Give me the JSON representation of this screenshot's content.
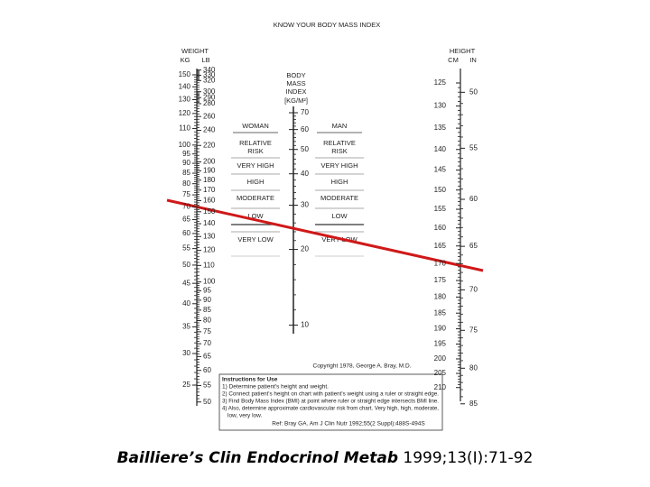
{
  "title": "KNOW YOUR BODY MASS INDEX",
  "weight": {
    "header": "WEIGHT",
    "kg_label": "KG",
    "lb_label": "LB",
    "kg": [
      150,
      140,
      130,
      120,
      110,
      100,
      95,
      90,
      85,
      80,
      75,
      70,
      65,
      60,
      55,
      50,
      45,
      40,
      35,
      30,
      25
    ],
    "lb": [
      340,
      330,
      320,
      300,
      290,
      280,
      260,
      240,
      220,
      200,
      190,
      180,
      170,
      160,
      150,
      140,
      130,
      120,
      110,
      100,
      95,
      90,
      85,
      80,
      75,
      70,
      65,
      60,
      55,
      50
    ]
  },
  "bmi": {
    "header": [
      "BODY",
      "MASS",
      "INDEX",
      "[KG/M²]"
    ],
    "ticks": [
      70,
      60,
      50,
      40,
      30,
      20,
      10
    ]
  },
  "height": {
    "header": "HEIGHT",
    "cm_label": "CM",
    "in_label": "IN",
    "cm": [
      125,
      130,
      135,
      140,
      145,
      150,
      155,
      160,
      165,
      170,
      175,
      180,
      185,
      190,
      195,
      200,
      205,
      210
    ],
    "in": [
      50,
      55,
      60,
      65,
      70,
      75,
      80,
      85
    ]
  },
  "woman": {
    "header": "WOMAN",
    "risk_header": [
      "RELATIVE",
      "RISK"
    ],
    "levels": [
      "VERY HIGH",
      "HIGH",
      "MODERATE",
      "LOW",
      "VERY LOW"
    ]
  },
  "man": {
    "header": "MAN",
    "risk_header": [
      "RELATIVE",
      "RISK"
    ],
    "levels": [
      "VERY HIGH",
      "HIGH",
      "MODERATE",
      "LOW",
      "VERY LOW"
    ]
  },
  "copyright": "Copyright 1978, George A. Bray, M.D.",
  "instructions": {
    "title": "Instructions for Use",
    "steps": [
      "1) Determine patient's height and weight.",
      "2) Connect patient's height on chart with patient's weight using a ruler or straight edge.",
      "3) Find Body Mass Index (BMI) at point where ruler or straight edge intersects BMI line.",
      "4) Also, determine approximate cardiovascular risk from chart. Very high, high, moderate,",
      "low, very low."
    ],
    "reference": "Ref: Bray GA. Am J Clin Nutr 1992;55(2 Suppl):488S-494S"
  },
  "citation": {
    "journal": "Bailliere’s Clin Endocrinol Metab",
    "details": " 1999;13(I):71-92"
  }
}
